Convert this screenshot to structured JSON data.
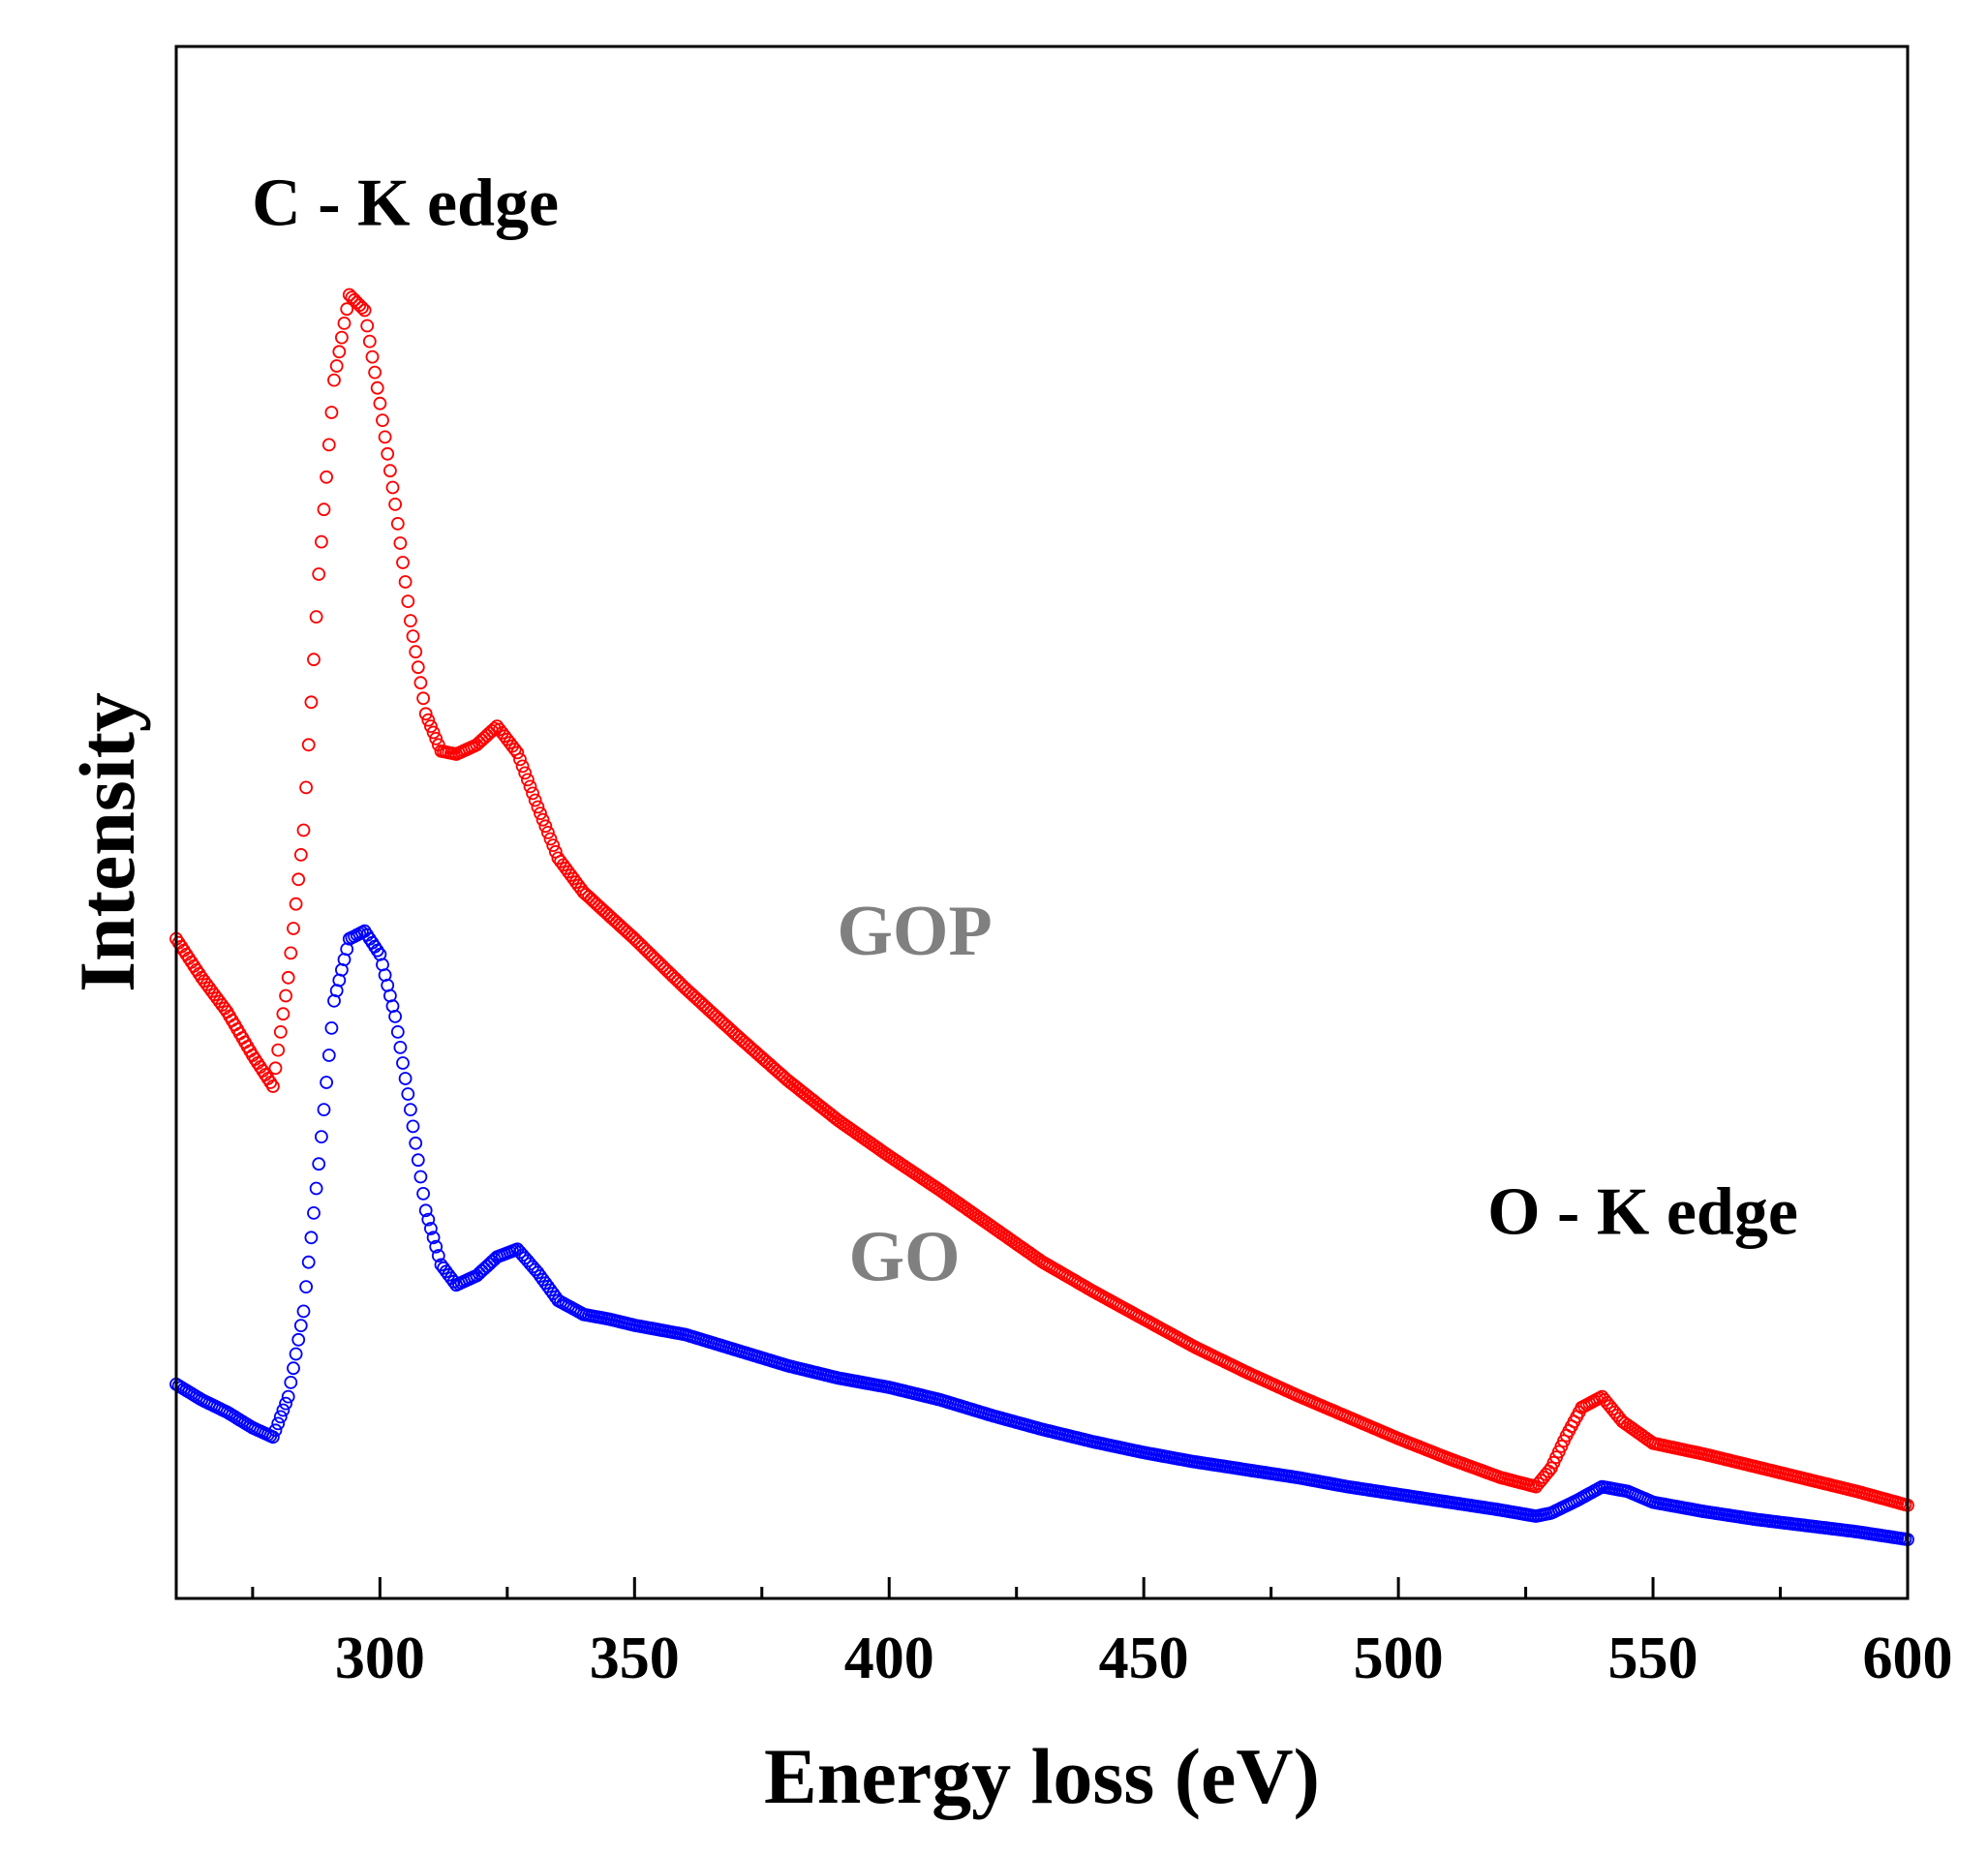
{
  "chart_data": {
    "type": "scatter",
    "title": "",
    "xlabel": "Energy loss (eV)",
    "ylabel": "Intensity",
    "xlim": [
      260,
      600
    ],
    "ylim": [
      0,
      100
    ],
    "yticks_visible": false,
    "x_major_ticks": [
      300,
      350,
      400,
      450,
      500,
      550,
      600
    ],
    "x_tick_labels": [
      "300",
      "350",
      "400",
      "450",
      "500",
      "550",
      "600"
    ],
    "x_minor_ticks": [
      275,
      325,
      375,
      425,
      475,
      525,
      575
    ],
    "grid": false,
    "legend": "none",
    "marker": "open-circle",
    "annotations": [
      {
        "id": "c-edge",
        "text": "C - K edge",
        "x": 305,
        "y": 88.5
      },
      {
        "id": "o-edge",
        "text": "O - K edge",
        "x": 548,
        "y": 23.5
      }
    ],
    "series": [
      {
        "name": "GOP",
        "color": "#ff0000",
        "label_x": 405,
        "label_y": 41.5,
        "x": [
          260,
          265,
          270,
          275,
          279,
          282,
          285,
          288,
          291,
          294,
          297,
          300,
          303,
          306,
          309,
          312,
          315,
          319,
          323,
          327,
          331,
          335,
          340,
          350,
          360,
          370,
          380,
          390,
          400,
          410,
          420,
          430,
          440,
          450,
          460,
          470,
          480,
          490,
          500,
          510,
          520,
          527,
          530,
          533,
          536,
          540,
          544,
          550,
          560,
          570,
          580,
          590,
          600
        ],
        "y": [
          42.5,
          40.0,
          37.8,
          35.0,
          33.0,
          40.0,
          49.5,
          66.0,
          78.5,
          84.0,
          83.0,
          77.0,
          70.5,
          63.0,
          57.0,
          54.6,
          54.4,
          55.0,
          56.2,
          54.5,
          51.0,
          47.7,
          45.5,
          42.5,
          39.3,
          36.3,
          33.4,
          30.8,
          28.5,
          26.3,
          24.0,
          21.7,
          19.8,
          18.0,
          16.2,
          14.6,
          13.1,
          11.7,
          10.3,
          9.0,
          7.8,
          7.2,
          8.4,
          10.5,
          12.3,
          13.0,
          11.4,
          10.0,
          9.3,
          8.5,
          7.7,
          6.9,
          6.0
        ]
      },
      {
        "name": "GO",
        "color": "#0000ff",
        "label_x": 403,
        "label_y": 20.5,
        "x": [
          260,
          265,
          270,
          275,
          279,
          282,
          285,
          288,
          291,
          294,
          297,
          300,
          303,
          306,
          309,
          312,
          315,
          319,
          323,
          327,
          331,
          335,
          340,
          345,
          350,
          360,
          370,
          380,
          390,
          400,
          410,
          420,
          430,
          440,
          450,
          460,
          470,
          480,
          490,
          500,
          510,
          520,
          527,
          530,
          535,
          540,
          545,
          550,
          560,
          570,
          580,
          590,
          600
        ],
        "y": [
          13.8,
          12.8,
          12.0,
          11.0,
          10.4,
          13.0,
          18.5,
          28.0,
          38.5,
          42.5,
          43.0,
          41.5,
          37.5,
          31.5,
          25.0,
          21.5,
          20.2,
          20.8,
          22.0,
          22.5,
          21.0,
          19.2,
          18.3,
          18.0,
          17.6,
          17.0,
          16.0,
          15.0,
          14.2,
          13.6,
          12.8,
          11.8,
          10.9,
          10.1,
          9.4,
          8.8,
          8.3,
          7.8,
          7.2,
          6.7,
          6.2,
          5.7,
          5.3,
          5.5,
          6.3,
          7.2,
          6.9,
          6.2,
          5.6,
          5.1,
          4.7,
          4.3,
          3.8
        ]
      }
    ]
  }
}
